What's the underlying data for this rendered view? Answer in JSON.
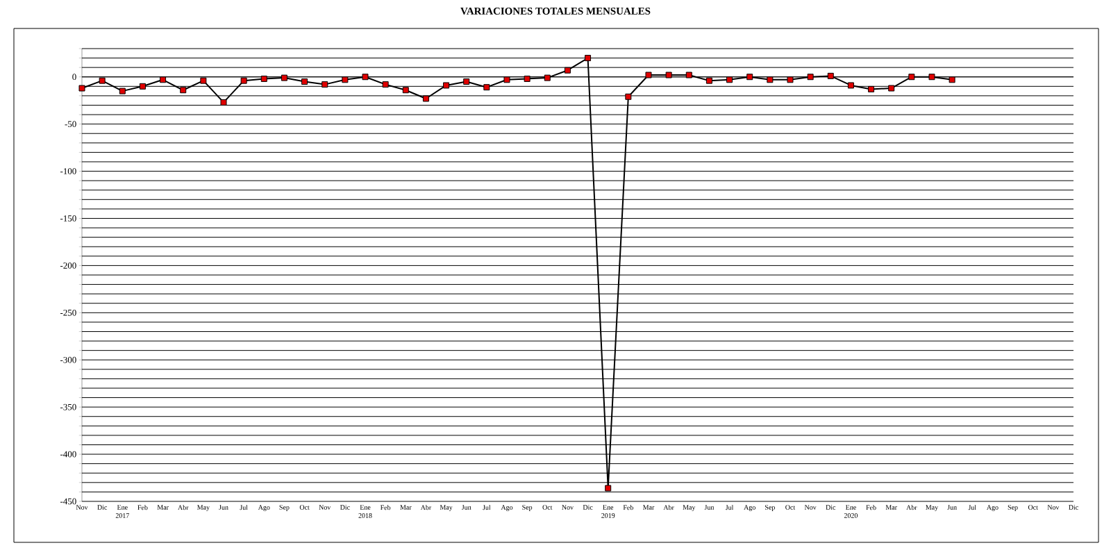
{
  "chart_data": {
    "type": "line",
    "title": "VARIACIONES TOTALES MENSUALES",
    "categories": [
      "Nov",
      "Dic",
      "Ene 2017",
      "Feb",
      "Mar",
      "Abr",
      "May",
      "Jun",
      "Jul",
      "Ago",
      "Sep",
      "Oct",
      "Nov",
      "Dic",
      "Ene 2018",
      "Feb",
      "Mar",
      "Abr",
      "May",
      "Jun",
      "Jul",
      "Ago",
      "Sep",
      "Oct",
      "Nov",
      "Dic",
      "Ene 2019",
      "Feb",
      "Mar",
      "Abr",
      "May",
      "Jun",
      "Jul",
      "Ago",
      "Sep",
      "Oct",
      "Nov",
      "Dic",
      "Ene 2020",
      "Feb",
      "Mar",
      "Abr",
      "May",
      "Jun",
      "Jul",
      "Ago",
      "Sep",
      "Oct",
      "Nov",
      "Dic"
    ],
    "series": [
      {
        "color": "#e00000",
        "values": [
          -12,
          -4,
          -15,
          -10,
          -3,
          -14,
          -4,
          -27,
          -4,
          -2,
          -1,
          -5,
          -8,
          -3,
          0,
          -8,
          -14,
          -23,
          -9,
          -5,
          -11,
          -3,
          -2,
          -1,
          7,
          20,
          -436,
          -21,
          2,
          2,
          2,
          -4,
          -3,
          0,
          -3,
          -3,
          0,
          1,
          -9,
          -13,
          -12,
          0,
          0,
          -3,
          null,
          null,
          null,
          null,
          null,
          null
        ]
      }
    ],
    "ylim": [
      -450,
      30
    ],
    "yticks": [
      -450,
      {
        "value": -440,
        "label": null
      },
      {
        "value": -430,
        "label": null
      },
      {
        "value": -420,
        "label": null
      },
      {
        "value": -410,
        "label": null
      },
      -400,
      {
        "value": -390,
        "label": null
      },
      {
        "value": -380,
        "label": null
      },
      {
        "value": -370,
        "label": null
      },
      {
        "value": -360,
        "label": null
      },
      -350,
      {
        "value": -340,
        "label": null
      },
      {
        "value": -330,
        "label": null
      },
      {
        "value": -320,
        "label": null
      },
      {
        "value": -310,
        "label": null
      },
      -300,
      {
        "value": -290,
        "label": null
      },
      {
        "value": -280,
        "label": null
      },
      {
        "value": -270,
        "label": null
      },
      {
        "value": -260,
        "label": null
      },
      -250,
      {
        "value": -240,
        "label": null
      },
      {
        "value": -230,
        "label": null
      },
      {
        "value": -220,
        "label": null
      },
      {
        "value": -210,
        "label": null
      },
      -200,
      {
        "value": -190,
        "label": null
      },
      {
        "value": -180,
        "label": null
      },
      {
        "value": -170,
        "label": null
      },
      {
        "value": -160,
        "label": null
      },
      -150,
      {
        "value": -140,
        "label": null
      },
      {
        "value": -130,
        "label": null
      },
      {
        "value": -120,
        "label": null
      },
      {
        "value": -110,
        "label": null
      },
      -100,
      {
        "value": -90,
        "label": null
      },
      {
        "value": -80,
        "label": null
      },
      {
        "value": -70,
        "label": null
      },
      {
        "value": -60,
        "label": null
      },
      -50,
      {
        "value": -40,
        "label": null
      },
      {
        "value": -30,
        "label": null
      },
      {
        "value": -20,
        "label": null
      },
      {
        "value": -10,
        "label": null
      },
      0,
      {
        "value": 10,
        "label": null
      },
      {
        "value": 20,
        "label": null
      },
      {
        "value": 30,
        "label": null
      }
    ],
    "grid": "y",
    "marker": "square",
    "line_style": "solid"
  }
}
